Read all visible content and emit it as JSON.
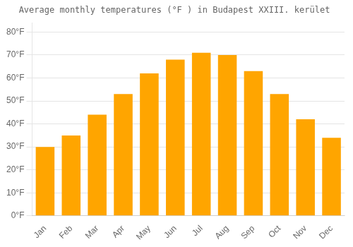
{
  "chart_data": {
    "type": "bar",
    "title": "Average monthly temperatures (°F ) in Budapest XXIII. kerület",
    "categories": [
      "Jan",
      "Feb",
      "Mar",
      "Apr",
      "May",
      "Jun",
      "Jul",
      "Aug",
      "Sep",
      "Oct",
      "Nov",
      "Dec"
    ],
    "values": [
      30,
      35,
      44,
      53,
      62,
      68,
      71,
      70,
      63,
      53,
      42,
      34
    ],
    "color": "#FFA500",
    "ylim": [
      0,
      84
    ],
    "yticks": [
      {
        "value": 0,
        "label": "0°F"
      },
      {
        "value": 10,
        "label": "10°F"
      },
      {
        "value": 20,
        "label": "20°F"
      },
      {
        "value": 30,
        "label": "30°F"
      },
      {
        "value": 40,
        "label": "40°F"
      },
      {
        "value": 50,
        "label": "50°F"
      },
      {
        "value": 60,
        "label": "60°F"
      },
      {
        "value": 70,
        "label": "70°F"
      },
      {
        "value": 80,
        "label": "80°F"
      }
    ],
    "grid": true
  }
}
